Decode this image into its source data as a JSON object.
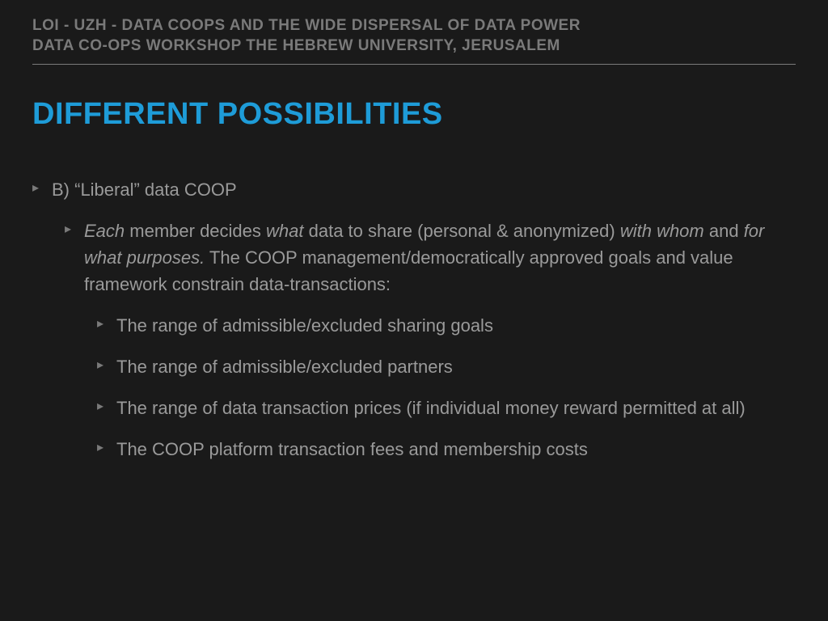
{
  "colors": {
    "background": "#1a1a1a",
    "header_text": "#7a7a7a",
    "divider": "#7a7a7a",
    "title": "#1e9cd8",
    "body_text": "#9a9a9a",
    "bullet": "#7a7a7a"
  },
  "typography": {
    "header_fontsize": 19,
    "header_weight": 700,
    "title_fontsize": 38,
    "title_weight": 800,
    "body_fontsize": 22,
    "body_weight": 400
  },
  "header": {
    "line1": "LOI - UZH - DATA COOPS AND THE WIDE DISPERSAL OF DATA POWER",
    "line2": "DATA CO-OPS WORKSHOP THE HEBREW UNIVERSITY, JERUSALEM"
  },
  "title": "DIFFERENT POSSIBILITIES",
  "bullets": {
    "b1": "B) “Liberal” data COOP",
    "b2_em1": "Each",
    "b2_txt1": " member decides ",
    "b2_em2": "what",
    "b2_txt2": " data to share (personal & anonymized) ",
    "b2_em3": "with whom",
    "b2_txt3": " and ",
    "b2_em4": "for what purposes.",
    "b2_txt4": " The COOP management/democratically approved goals and value framework constrain data-transactions:",
    "b3": "The range of admissible/excluded sharing goals",
    "b4": "The range of admissible/excluded partners",
    "b5": "The range of data transaction prices (if individual money reward permitted at all)",
    "b6": "The COOP platform transaction fees and membership costs"
  }
}
